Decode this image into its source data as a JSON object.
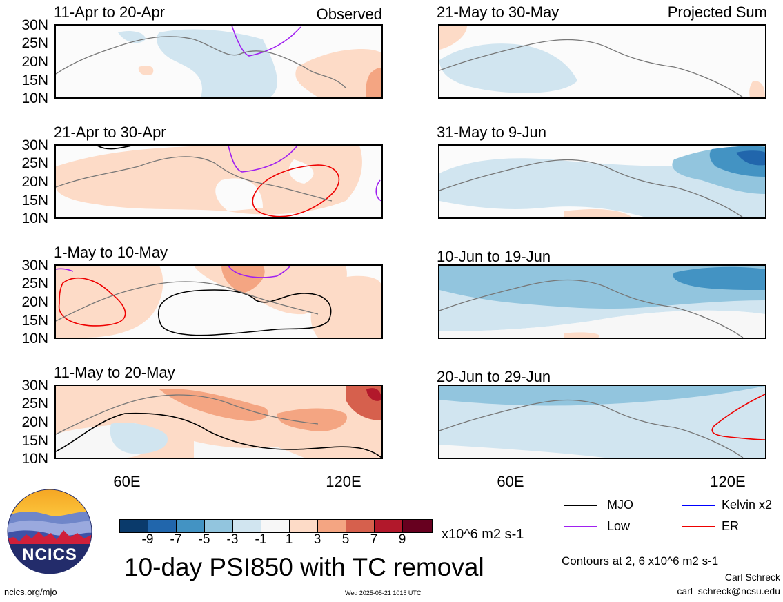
{
  "panels": {
    "left": [
      {
        "title": "11-Apr to 20-Apr",
        "tag": "Observed"
      },
      {
        "title": "21-Apr to 30-Apr",
        "tag": ""
      },
      {
        "title": "1-May to 10-May",
        "tag": ""
      },
      {
        "title": "11-May to 20-May",
        "tag": ""
      }
    ],
    "right": [
      {
        "title": "21-May to 30-May",
        "tag": "Projected Sum"
      },
      {
        "title": "31-May to 9-Jun",
        "tag": ""
      },
      {
        "title": "10-Jun to 19-Jun",
        "tag": ""
      },
      {
        "title": "20-Jun to 29-Jun",
        "tag": ""
      }
    ]
  },
  "y_ticks": [
    "30N",
    "25N",
    "20N",
    "15N",
    "10N"
  ],
  "x_ticks": [
    "60E",
    "120E"
  ],
  "colorbar": {
    "colors": [
      "#0a3a6b",
      "#2166ac",
      "#4393c3",
      "#92c5de",
      "#d1e5f0",
      "#f7f7f7",
      "#fddbc7",
      "#f4a582",
      "#d6604d",
      "#b2182b",
      "#67001f"
    ],
    "labels": [
      "-9",
      "-7",
      "-5",
      "-3",
      "-1",
      "1",
      "3",
      "5",
      "7",
      "9"
    ],
    "units": "x10^6 m2 s-1"
  },
  "legend": {
    "items": [
      {
        "label": "MJO",
        "color": "#000000"
      },
      {
        "label": "Kelvin x2",
        "color": "#0000ff"
      },
      {
        "label": "Low",
        "color": "#a020f0"
      },
      {
        "label": "ER",
        "color": "#ee0000"
      }
    ],
    "contours_note": "Contours at 2, 6 x10^6 m2 s-1"
  },
  "main_title": "10-day PSI850 with TC removal",
  "logo_text": "NCICS",
  "footer": {
    "left": "ncics.org/mjo",
    "center": "Wed 2025-05-21 1015 UTC",
    "author": "Carl Schreck",
    "email": "carl_schreck@ncsu.edu"
  }
}
